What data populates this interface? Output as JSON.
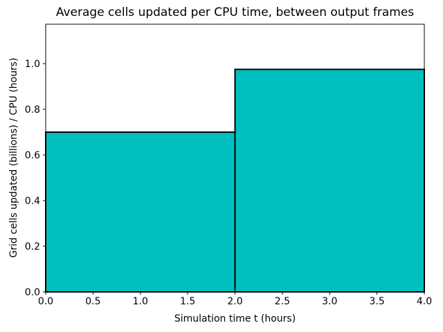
{
  "chart_data": {
    "type": "bar",
    "subtype": "histogram-step",
    "title": "Average cells updated per CPU time, between output frames",
    "xlabel": "Simulation time t (hours)",
    "ylabel": "Grid cells updated (billions) / CPU (hours)",
    "bars": [
      {
        "x_start": 0.0,
        "x_end": 2.0,
        "value": 0.7
      },
      {
        "x_start": 2.0,
        "x_end": 4.0,
        "value": 0.975
      }
    ],
    "xlim": [
      0.0,
      4.0
    ],
    "ylim": [
      0.0,
      1.173
    ],
    "xticks": {
      "values": [
        0.0,
        0.5,
        1.0,
        1.5,
        2.0,
        2.5,
        3.0,
        3.5,
        4.0
      ],
      "labels": [
        "0.0",
        "0.5",
        "1.0",
        "1.5",
        "2.0",
        "2.5",
        "3.0",
        "3.5",
        "4.0"
      ]
    },
    "yticks": {
      "values": [
        0.0,
        0.2,
        0.4,
        0.6,
        0.8,
        1.0
      ],
      "labels": [
        "0.0",
        "0.2",
        "0.4",
        "0.6",
        "0.8",
        "1.0"
      ]
    },
    "grid": false,
    "legend": null,
    "colors": {
      "bar_fill": "#00bfbf",
      "bar_edge": "#000000",
      "spine": "#000000",
      "text": "#000000",
      "background": "#ffffff"
    }
  }
}
